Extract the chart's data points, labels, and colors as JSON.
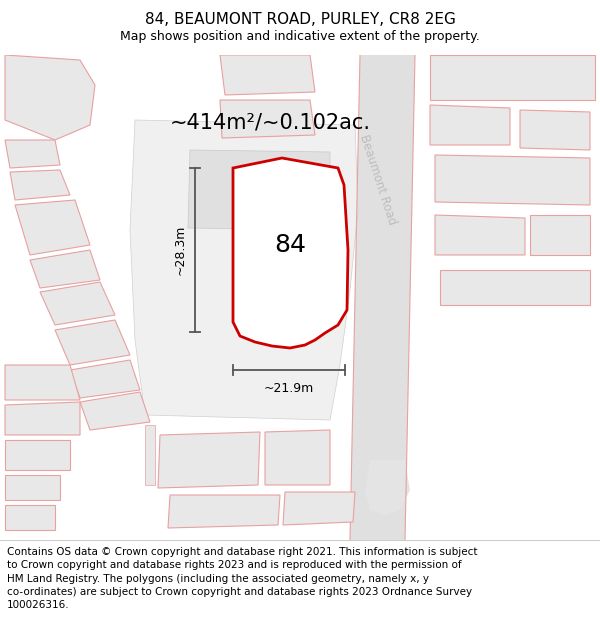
{
  "title": "84, BEAUMONT ROAD, PURLEY, CR8 2EG",
  "subtitle": "Map shows position and indicative extent of the property.",
  "area_label": "~414m²/~0.102ac.",
  "dim_height": "~28.3m",
  "dim_width": "~21.9m",
  "number_label": "84",
  "road_label": "Beaumont Road",
  "footer": "Contains OS data © Crown copyright and database right 2021. This information is subject\nto Crown copyright and database rights 2023 and is reproduced with the permission of\nHM Land Registry. The polygons (including the associated geometry, namely x, y\nco-ordinates) are subject to Crown copyright and database rights 2023 Ordnance Survey\n100026316.",
  "map_bg": "#ffffff",
  "building_fc": "#e8e8e8",
  "building_ec": "#e8a0a0",
  "highlight_ec": "#cc0000",
  "highlight_fc": "#ffffff",
  "road_fc": "#d8d8d8",
  "road_ec": "#e8a0a0",
  "dim_color": "#555555",
  "text_color": "#000000",
  "road_label_color": "#c0bcbc",
  "title_fs": 11,
  "subtitle_fs": 9,
  "area_fs": 15,
  "num_fs": 18,
  "dim_fs": 9,
  "road_fs": 8.5,
  "footer_fs": 7.5
}
